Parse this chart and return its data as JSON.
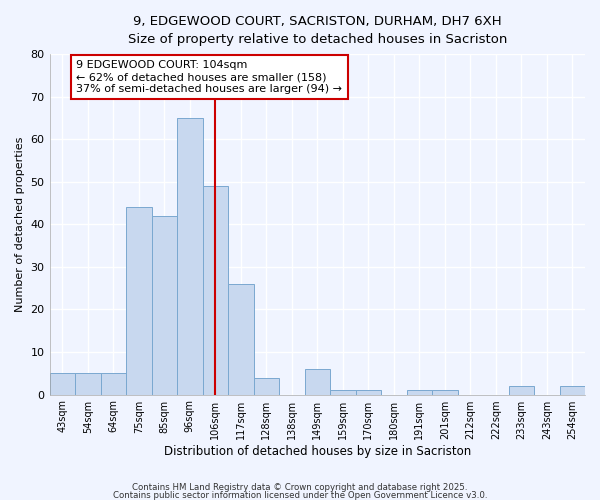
{
  "title_line1": "9, EDGEWOOD COURT, SACRISTON, DURHAM, DH7 6XH",
  "title_line2": "Size of property relative to detached houses in Sacriston",
  "xlabel": "Distribution of detached houses by size in Sacriston",
  "ylabel": "Number of detached properties",
  "categories": [
    "43sqm",
    "54sqm",
    "64sqm",
    "75sqm",
    "85sqm",
    "96sqm",
    "106sqm",
    "117sqm",
    "128sqm",
    "138sqm",
    "149sqm",
    "159sqm",
    "170sqm",
    "180sqm",
    "191sqm",
    "201sqm",
    "212sqm",
    "222sqm",
    "233sqm",
    "243sqm",
    "254sqm"
  ],
  "values": [
    5,
    5,
    5,
    44,
    42,
    65,
    49,
    26,
    4,
    0,
    6,
    1,
    1,
    0,
    1,
    1,
    0,
    0,
    2,
    0,
    2
  ],
  "bar_color": "#c8d8ef",
  "bar_edge_color": "#7aa8d0",
  "vline_x": 6.0,
  "vline_color": "#cc0000",
  "annotation_text": "9 EDGEWOOD COURT: 104sqm\n← 62% of detached houses are smaller (158)\n37% of semi-detached houses are larger (94) →",
  "annotation_box_color": "#ffffff",
  "annotation_box_edge_color": "#cc0000",
  "ylim": [
    0,
    80
  ],
  "yticks": [
    0,
    10,
    20,
    30,
    40,
    50,
    60,
    70,
    80
  ],
  "plot_bg_color": "#f0f4ff",
  "fig_bg_color": "#f0f4ff",
  "grid_color": "#ffffff",
  "footer_line1": "Contains HM Land Registry data © Crown copyright and database right 2025.",
  "footer_line2": "Contains public sector information licensed under the Open Government Licence v3.0."
}
